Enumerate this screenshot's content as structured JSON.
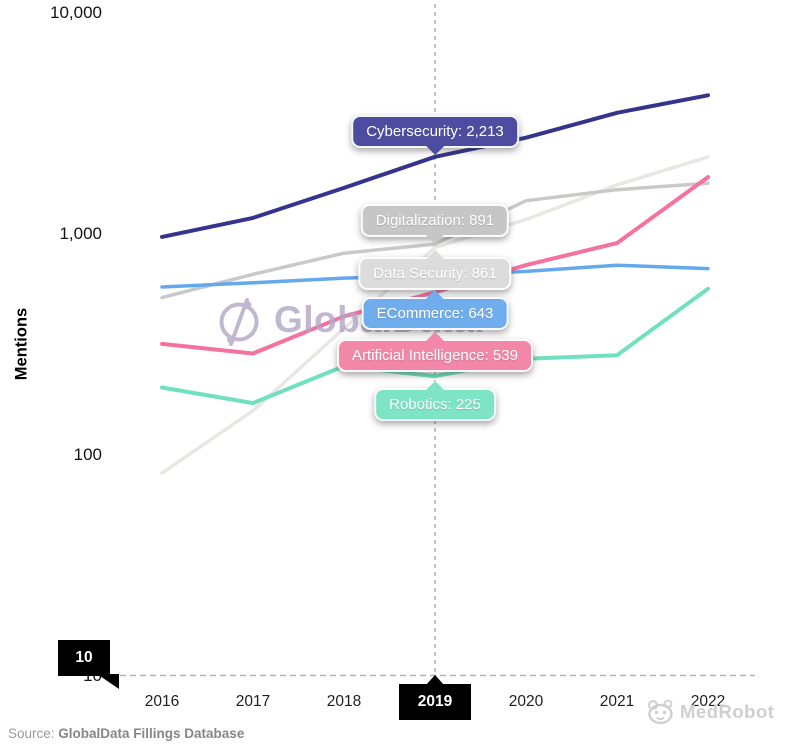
{
  "chart_data": {
    "type": "line",
    "title": "",
    "x_labels": [
      "2016",
      "2017",
      "2018",
      "2019",
      "2020",
      "2021",
      "2022"
    ],
    "highlighted_year": "2019",
    "ylabel": "Mentions",
    "y_scale": "log",
    "ylim": [
      10,
      10000
    ],
    "y_ticks": [
      {
        "label": "10,000",
        "value": 10000
      },
      {
        "label": "1,000",
        "value": 1000
      },
      {
        "label": "100",
        "value": 100
      },
      {
        "label": "10",
        "value": 10
      }
    ],
    "grid": "off",
    "legend_position": "none",
    "crosshair": {
      "x_year": "2019",
      "style": "dashed"
    },
    "series": [
      {
        "name": "Cybersecurity",
        "color": "#34348c",
        "line_width": 4,
        "values": [
          960,
          1170,
          1600,
          2213,
          2700,
          3500,
          4200
        ],
        "value_at_2019": 2213,
        "tooltip": {
          "label": "Cybersecurity: 2,213",
          "bg": "#4c4ca0",
          "top": 115,
          "arrow": "down"
        }
      },
      {
        "name": "Digitalization",
        "color": "#c9c9c9",
        "line_width": 3.5,
        "values": [
          510,
          650,
          810,
          891,
          1400,
          1570,
          1680
        ],
        "value_at_2019": 891,
        "tooltip": {
          "label": "Digitalization: 891",
          "bg": "#c6c6c6",
          "top": 204,
          "arrow": "down"
        }
      },
      {
        "name": "Data Security",
        "color": "#e9e7e4",
        "line_width": 3.5,
        "values": [
          82,
          157,
          370,
          861,
          1150,
          1650,
          2210
        ],
        "value_at_2019": 861,
        "tooltip": {
          "label": "Data Security: 861",
          "bg": "#dcdcdc",
          "top": 257,
          "arrow": "up"
        }
      },
      {
        "name": "ECommerce",
        "color": "#64a8ee",
        "line_width": 3.5,
        "values": [
          570,
          595,
          625,
          643,
          670,
          715,
          690
        ],
        "value_at_2019": 643,
        "tooltip": {
          "label": "ECommerce: 643",
          "bg": "#6fadec",
          "top": 297,
          "arrow": "up"
        }
      },
      {
        "name": "Artificial Intelligence",
        "color": "#f5719f",
        "line_width": 4,
        "values": [
          315,
          285,
          420,
          539,
          716,
          900,
          1790
        ],
        "value_at_2019": 539,
        "tooltip": {
          "label": "Artificial Intelligence: 539",
          "bg": "#f287a7",
          "top": 339,
          "arrow": "up"
        }
      },
      {
        "name": "Robotics",
        "color": "#6fe0c0",
        "line_width": 4,
        "values": [
          200,
          170,
          250,
          225,
          270,
          280,
          560
        ],
        "value_at_2019": 225,
        "tooltip": {
          "label": "Robotics: 225",
          "bg": "#7de4c5",
          "top": 388,
          "arrow": "up"
        }
      }
    ]
  },
  "cursor_tooltips": {
    "y_axis_value": "10",
    "x_axis_value": "2019"
  },
  "watermarks": {
    "globaldata_text": "GlobalData.",
    "medrobot_text": "MedRobot"
  },
  "source": {
    "prefix": "Source: ",
    "name": "GlobalData Fillings Database"
  }
}
